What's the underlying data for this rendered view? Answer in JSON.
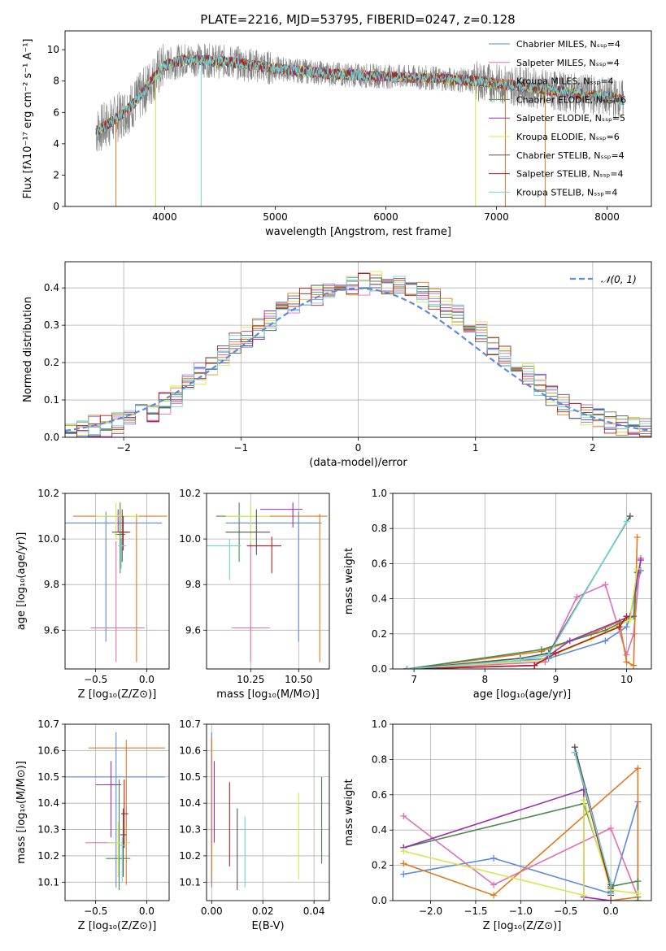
{
  "figure_title": "PLATE=2216, MJD=53795, FIBERID=0247, z=0.128",
  "colors": {
    "chabrier_miles": "#5b8bd9",
    "salpeter_miles": "#e36fb3",
    "kroupa_miles": "#e07a20",
    "chabrier_elodie": "#4a8a4a",
    "salpeter_elodie": "#9b2fb0",
    "kroupa_elodie": "#d4e84a",
    "chabrier_stelib": "#555555",
    "salpeter_stelib": "#b02020",
    "kroupa_stelib": "#6fd3d8",
    "data": "#808080",
    "normal": "#5b8bd9",
    "grid": "#b0b0b0"
  },
  "chart_data": [
    {
      "id": "spectrum",
      "type": "line",
      "xlabel": "wavelength [Angstrom, rest frame]",
      "ylabel": "Flux [fλ10⁻¹⁷ erg cm⁻² s⁻¹ A⁻¹]",
      "xlim": [
        3100,
        8400
      ],
      "ylim": [
        0,
        11.2
      ],
      "xticks": [
        "4000",
        "5000",
        "6000",
        "7000",
        "8000"
      ],
      "yticks": [
        "0",
        "2",
        "4",
        "6",
        "8",
        "10"
      ],
      "grid": false,
      "legend_position": "top-right",
      "legend": [
        "Chabrier MILES, Nₛₛₚ=4",
        "Salpeter MILES, Nₛₛₚ=4",
        "Kroupa MILES, Nₛₛₚ=4",
        "Chabrier ELODIE, Nₛₛₚ=6",
        "Salpeter ELODIE, Nₛₛₚ=5",
        "Kroupa ELODIE, Nₛₛₚ=6",
        "Chabrier STELIB, Nₛₛₚ=4",
        "Salpeter STELIB, Nₛₛₚ=4",
        "Kroupa STELIB, Nₛₛₚ=4"
      ],
      "continuum_wavelength": [
        3380,
        3500,
        3600,
        3700,
        3800,
        3900,
        4000,
        4200,
        4400,
        4600,
        4800,
        5000,
        5300,
        5600,
        6000,
        6400,
        6800,
        7200,
        7600,
        8000,
        8150
      ],
      "continuum_flux": [
        4.8,
        5.3,
        5.8,
        6.4,
        7.2,
        8.2,
        9.0,
        9.4,
        9.3,
        9.2,
        9.0,
        8.8,
        8.6,
        8.4,
        8.3,
        8.2,
        8.0,
        7.7,
        7.3,
        7.0,
        6.8
      ]
    },
    {
      "id": "residuals",
      "type": "bar",
      "xlabel": "(data-model)/error",
      "ylabel": "Normed distribution",
      "xlim": [
        -2.5,
        2.5
      ],
      "ylim": [
        0,
        0.47
      ],
      "xticks": [
        "−2",
        "−1",
        "0",
        "1",
        "2"
      ],
      "yticks": [
        "0.0",
        "0.1",
        "0.2",
        "0.3",
        "0.4"
      ],
      "grid": true,
      "legend_position": "top-right",
      "legend": [
        "𝒩(0, 1)"
      ],
      "bin_width": 0.1,
      "bin_start": -2.5,
      "histogram": [
        0.02,
        0.02,
        0.03,
        0.03,
        0.04,
        0.05,
        0.06,
        0.07,
        0.09,
        0.11,
        0.14,
        0.17,
        0.19,
        0.22,
        0.25,
        0.27,
        0.29,
        0.31,
        0.34,
        0.36,
        0.37,
        0.38,
        0.39,
        0.4,
        0.41,
        0.41,
        0.42,
        0.41,
        0.41,
        0.4,
        0.39,
        0.37,
        0.35,
        0.33,
        0.31,
        0.28,
        0.25,
        0.22,
        0.19,
        0.17,
        0.14,
        0.11,
        0.09,
        0.07,
        0.06,
        0.05,
        0.04,
        0.03,
        0.03,
        0.02
      ]
    },
    {
      "id": "age-vs-Z",
      "type": "scatter",
      "xlabel": "Z [log₁₀(Z/Z⊙)]",
      "ylabel": "age  [log₁₀(age/yr)]",
      "xlim": [
        -0.8,
        0.22
      ],
      "ylim": [
        9.43,
        10.2
      ],
      "xticks": [
        "−0.5",
        "0.0"
      ],
      "yticks": [
        "9.6",
        "9.8",
        "10.0",
        "10.2"
      ],
      "grid": true,
      "points": [
        {
          "model": "chabrier_miles",
          "x": -0.4,
          "xerr": [
            0.75,
            0.55
          ],
          "y": 10.07,
          "yerr": [
            0.52,
            0.05
          ]
        },
        {
          "model": "salpeter_miles",
          "x": -0.3,
          "xerr": [
            0.25,
            0.28
          ],
          "y": 9.61,
          "yerr": [
            0.15,
            0.38
          ]
        },
        {
          "model": "kroupa_miles",
          "x": -0.1,
          "xerr": [
            0.62,
            0.3
          ],
          "y": 10.1,
          "yerr": [
            0.64,
            0.01
          ]
        },
        {
          "model": "chabrier_elodie",
          "x": -0.26,
          "xerr": [
            0.05,
            0.05
          ],
          "y": 10.02,
          "yerr": [
            0.17,
            0.14
          ]
        },
        {
          "model": "salpeter_elodie",
          "x": -0.28,
          "xerr": [
            0.12,
            0.1
          ],
          "y": 10.1,
          "yerr": [
            0.07,
            0.03
          ]
        },
        {
          "model": "kroupa_elodie",
          "x": -0.3,
          "xerr": [
            0.2,
            0.22
          ],
          "y": 10.1,
          "yerr": [
            0.1,
            0.06
          ]
        },
        {
          "model": "chabrier_stelib",
          "x": -0.24,
          "xerr": [
            0.1,
            0.08
          ],
          "y": 10.03,
          "yerr": [
            0.13,
            0.1
          ]
        },
        {
          "model": "salpeter_stelib",
          "x": -0.23,
          "xerr": [
            0.05,
            0.05
          ],
          "y": 10.03,
          "yerr": [
            0.08,
            0.07
          ]
        },
        {
          "model": "kroupa_stelib",
          "x": -0.25,
          "xerr": [
            0.03,
            0.05
          ],
          "y": 9.97,
          "yerr": [
            0.1,
            0.03
          ]
        }
      ]
    },
    {
      "id": "age-vs-mass",
      "type": "scatter",
      "xlabel": "mass [log₁₀(M/M⊙)]",
      "ylabel": "",
      "xlim": [
        10.02,
        10.66
      ],
      "ylim": [
        9.43,
        10.2
      ],
      "xticks": [
        "10.25",
        "10.50"
      ],
      "yticks": [
        "9.6",
        "9.8",
        "10.0",
        "10.2"
      ],
      "grid": true,
      "points": [
        {
          "model": "chabrier_miles",
          "x": 10.5,
          "xerr": [
            0.38,
            0.12
          ],
          "y": 10.07,
          "yerr": [
            0.52,
            0.05
          ]
        },
        {
          "model": "salpeter_miles",
          "x": 10.25,
          "xerr": [
            0.1,
            0.1
          ],
          "y": 9.61,
          "yerr": [
            0.15,
            0.38
          ]
        },
        {
          "model": "kroupa_miles",
          "x": 10.61,
          "xerr": [
            0.32,
            0.04
          ],
          "y": 10.1,
          "yerr": [
            0.64,
            0.01
          ]
        },
        {
          "model": "chabrier_elodie",
          "x": 10.19,
          "xerr": [
            0.12,
            0.1
          ],
          "y": 10.1,
          "yerr": [
            0.2,
            0.06
          ]
        },
        {
          "model": "salpeter_elodie",
          "x": 10.47,
          "xerr": [
            0.17,
            0.05
          ],
          "y": 10.13,
          "yerr": [
            0.08,
            0.03
          ]
        },
        {
          "model": "kroupa_elodie",
          "x": 10.25,
          "xerr": [
            0.13,
            0.1
          ],
          "y": 10.1,
          "yerr": [
            0.12,
            0.06
          ]
        },
        {
          "model": "chabrier_stelib",
          "x": 10.28,
          "xerr": [
            0.16,
            0.07
          ],
          "y": 10.03,
          "yerr": [
            0.1,
            0.1
          ]
        },
        {
          "model": "salpeter_stelib",
          "x": 10.36,
          "xerr": [
            0.13,
            0.05
          ],
          "y": 9.97,
          "yerr": [
            0.12,
            0.04
          ]
        },
        {
          "model": "kroupa_stelib",
          "x": 10.14,
          "xerr": [
            0.12,
            0.06
          ],
          "y": 9.97,
          "yerr": [
            0.15,
            0.03
          ]
        }
      ]
    },
    {
      "id": "weight-vs-age",
      "type": "line",
      "xlabel": "age  [log₁₀(age/yr)]",
      "ylabel": "mass weight",
      "xlim": [
        6.7,
        10.35
      ],
      "ylim": [
        0,
        1.0
      ],
      "xticks": [
        "7",
        "8",
        "9",
        "10"
      ],
      "yticks": [
        "0.0",
        "0.2",
        "0.4",
        "0.6",
        "0.8",
        "1.0"
      ],
      "grid": true,
      "series": [
        {
          "model": "chabrier_miles",
          "x": [
            6.9,
            8.9,
            9.7,
            10.0,
            10.05,
            10.2
          ],
          "y": [
            0.0,
            0.06,
            0.16,
            0.24,
            0.3,
            0.56
          ]
        },
        {
          "model": "salpeter_miles",
          "x": [
            6.9,
            8.85,
            9.3,
            9.7,
            10.0,
            10.1,
            10.2
          ],
          "y": [
            0.0,
            0.04,
            0.41,
            0.48,
            0.08,
            0.2,
            0.63
          ]
        },
        {
          "model": "kroupa_miles",
          "x": [
            6.9,
            8.8,
            9.5,
            9.9,
            10.0,
            10.1,
            10.15
          ],
          "y": [
            0.0,
            0.1,
            0.2,
            0.27,
            0.04,
            0.02,
            0.75
          ]
        },
        {
          "model": "chabrier_elodie",
          "x": [
            6.9,
            8.8,
            9.7,
            10.1,
            10.15
          ],
          "y": [
            0.0,
            0.11,
            0.22,
            0.3,
            0.55
          ]
        },
        {
          "model": "salpeter_elodie",
          "x": [
            6.9,
            8.7,
            9.2,
            10.05,
            10.2
          ],
          "y": [
            0.0,
            0.02,
            0.16,
            0.3,
            0.62
          ]
        },
        {
          "model": "kroupa_elodie",
          "x": [
            6.9,
            8.8,
            9.5,
            10.05,
            10.15
          ],
          "y": [
            0.0,
            0.05,
            0.17,
            0.28,
            0.57
          ]
        },
        {
          "model": "chabrier_stelib",
          "x": [
            6.9,
            8.5,
            8.9,
            10.05
          ],
          "y": [
            0.0,
            0.06,
            0.09,
            0.87
          ]
        },
        {
          "model": "salpeter_stelib",
          "x": [
            6.9,
            8.7,
            9.0,
            9.9,
            10.0
          ],
          "y": [
            0.0,
            0.02,
            0.09,
            0.24,
            0.3
          ]
        },
        {
          "model": "kroupa_stelib",
          "x": [
            6.9,
            8.5,
            8.9,
            10.0
          ],
          "y": [
            0.0,
            0.05,
            0.08,
            0.84
          ]
        }
      ]
    },
    {
      "id": "mass-vs-Z",
      "type": "scatter",
      "xlabel": "Z [log₁₀(Z/Z⊙)]",
      "ylabel": "mass [log₁₀(M/M⊙)]",
      "xlim": [
        -0.8,
        0.22
      ],
      "ylim": [
        10.03,
        10.7
      ],
      "xticks": [
        "−0.5",
        "0.0"
      ],
      "yticks": [
        "10.1",
        "10.2",
        "10.3",
        "10.4",
        "10.5",
        "10.6",
        "10.7"
      ],
      "grid": true,
      "points": [
        {
          "model": "chabrier_miles",
          "x": -0.3,
          "xerr": [
            0.5,
            0.48
          ],
          "y": 10.5,
          "yerr": [
            0.42,
            0.17
          ]
        },
        {
          "model": "salpeter_miles",
          "x": -0.4,
          "xerr": [
            0.2,
            0.1
          ],
          "y": 10.25,
          "yerr": [
            0.0,
            0.0
          ]
        },
        {
          "model": "kroupa_miles",
          "x": -0.2,
          "xerr": [
            0.37,
            0.38
          ],
          "y": 10.61,
          "yerr": [
            0.52,
            0.03
          ]
        },
        {
          "model": "chabrier_elodie",
          "x": -0.27,
          "xerr": [
            0.13,
            0.11
          ],
          "y": 10.19,
          "yerr": [
            0.12,
            0.3
          ]
        },
        {
          "model": "salpeter_elodie",
          "x": -0.35,
          "xerr": [
            0.15,
            0.1
          ],
          "y": 10.47,
          "yerr": [
            0.2,
            0.09
          ]
        },
        {
          "model": "kroupa_elodie",
          "x": -0.28,
          "xerr": [
            0.1,
            0.12
          ],
          "y": 10.25,
          "yerr": [
            0.13,
            0.08
          ]
        },
        {
          "model": "chabrier_stelib",
          "x": -0.23,
          "xerr": [
            0.03,
            0.03
          ],
          "y": 10.28,
          "yerr": [
            0.16,
            0.1
          ]
        },
        {
          "model": "salpeter_stelib",
          "x": -0.22,
          "xerr": [
            0.03,
            0.04
          ],
          "y": 10.36,
          "yerr": [
            0.13,
            0.13
          ]
        },
        {
          "model": "kroupa_stelib",
          "x": -0.24,
          "xerr": [
            0.02,
            0.03
          ],
          "y": 10.24,
          "yerr": [
            0.14,
            0.03
          ]
        }
      ]
    },
    {
      "id": "mass-vs-EBV",
      "type": "scatter",
      "xlabel": "E(B-V)",
      "ylabel": "",
      "xlim": [
        -0.002,
        0.046
      ],
      "ylim": [
        10.03,
        10.7
      ],
      "xticks": [
        "0.00",
        "0.02",
        "0.04"
      ],
      "yticks": [
        "10.1",
        "10.2",
        "10.3",
        "10.4",
        "10.5",
        "10.6",
        "10.7"
      ],
      "grid": true,
      "points": [
        {
          "model": "chabrier_miles",
          "x": 0.0,
          "y": 10.5,
          "yerr": [
            0.42,
            0.17
          ]
        },
        {
          "model": "salpeter_miles",
          "x": 0.0,
          "y": 10.55,
          "yerr": [
            0.3,
            0.1
          ]
        },
        {
          "model": "kroupa_miles",
          "x": 0.0,
          "y": 10.3,
          "yerr": [
            0.2,
            0.35
          ]
        },
        {
          "model": "chabrier_elodie",
          "x": 0.043,
          "y": 10.33,
          "yerr": [
            0.16,
            0.17
          ]
        },
        {
          "model": "salpeter_elodie",
          "x": 0.001,
          "y": 10.4,
          "yerr": [
            0.15,
            0.16
          ]
        },
        {
          "model": "kroupa_elodie",
          "x": 0.034,
          "y": 10.28,
          "yerr": [
            0.17,
            0.16
          ]
        },
        {
          "model": "chabrier_stelib",
          "x": 0.01,
          "y": 10.22,
          "yerr": [
            0.15,
            0.16
          ]
        },
        {
          "model": "salpeter_stelib",
          "x": 0.007,
          "y": 10.32,
          "yerr": [
            0.16,
            0.16
          ]
        },
        {
          "model": "kroupa_stelib",
          "x": 0.013,
          "y": 10.2,
          "yerr": [
            0.12,
            0.15
          ]
        }
      ]
    },
    {
      "id": "weight-vs-Z",
      "type": "line",
      "xlabel": "Z [log₁₀(Z/Z⊙)]",
      "ylabel": "mass weight",
      "xlim": [
        -2.42,
        0.45
      ],
      "ylim": [
        0,
        1.0
      ],
      "xticks": [
        "−2.0",
        "−1.5",
        "−1.0",
        "−0.5",
        "0.0"
      ],
      "yticks": [
        "0.0",
        "0.2",
        "0.4",
        "0.6",
        "0.8",
        "1.0"
      ],
      "grid": true,
      "series": [
        {
          "model": "chabrier_miles",
          "x": [
            -2.3,
            -1.3,
            0.0,
            0.3,
            0.3
          ],
          "y": [
            0.15,
            0.24,
            0.04,
            0.56,
            0.0
          ]
        },
        {
          "model": "salpeter_miles",
          "x": [
            -2.3,
            -1.3,
            0.0,
            0.3,
            0.3
          ],
          "y": [
            0.48,
            0.09,
            0.41,
            0.02,
            0.0
          ]
        },
        {
          "model": "kroupa_miles",
          "x": [
            -2.3,
            -1.3,
            0.3,
            0.3,
            0.0
          ],
          "y": [
            0.21,
            0.03,
            0.75,
            0.02,
            0.0
          ]
        },
        {
          "model": "chabrier_elodie",
          "x": [
            -2.3,
            -0.3,
            0.0,
            0.3,
            0.3
          ],
          "y": [
            0.3,
            0.55,
            0.08,
            0.11,
            0.0
          ]
        },
        {
          "model": "salpeter_elodie",
          "x": [
            -2.3,
            -0.3,
            -0.3,
            0.0
          ],
          "y": [
            0.3,
            0.63,
            0.02,
            0.0
          ]
        },
        {
          "model": "kroupa_elodie",
          "x": [
            -2.3,
            -0.3,
            -0.3,
            0.0,
            0.3
          ],
          "y": [
            0.28,
            0.03,
            0.57,
            0.06,
            0.04
          ]
        },
        {
          "model": "chabrier_stelib",
          "x": [
            -0.4,
            0.0,
            0.0
          ],
          "y": [
            0.87,
            0.09,
            0.05
          ]
        },
        {
          "model": "salpeter_stelib",
          "x": [
            -0.4,
            0.0,
            0.0
          ],
          "y": [
            0.84,
            0.07,
            0.03
          ]
        },
        {
          "model": "kroupa_stelib",
          "x": [
            -0.4,
            0.0,
            0.0
          ],
          "y": [
            0.84,
            0.1,
            0.04
          ]
        }
      ]
    }
  ]
}
